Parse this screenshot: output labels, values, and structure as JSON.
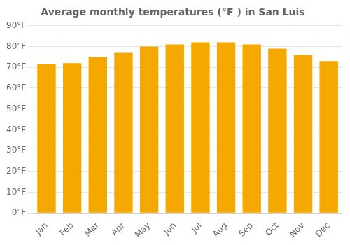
{
  "chart_data": {
    "type": "bar",
    "title": "Average monthly temperatures (°F ) in San Luis",
    "categories": [
      "Jan",
      "Feb",
      "Mar",
      "Apr",
      "May",
      "Jun",
      "Jul",
      "Aug",
      "Sep",
      "Oct",
      "Nov",
      "Dec"
    ],
    "values": [
      71.5,
      72,
      75,
      77,
      80,
      81,
      82,
      82,
      81,
      79,
      76,
      73
    ],
    "color": "#F5A800",
    "ylim": [
      0,
      90
    ],
    "yticks": [
      {
        "value": 0,
        "label": "0°F"
      },
      {
        "value": 10,
        "label": "10°F"
      },
      {
        "value": 20,
        "label": "20°F"
      },
      {
        "value": 30,
        "label": "30°F"
      },
      {
        "value": 40,
        "label": "40°F"
      },
      {
        "value": 50,
        "label": "50°F"
      },
      {
        "value": 60,
        "label": "60°F"
      },
      {
        "value": 70,
        "label": "70°F"
      },
      {
        "value": 80,
        "label": "80°F"
      },
      {
        "value": 90,
        "label": "90°F"
      }
    ],
    "grid": true
  }
}
